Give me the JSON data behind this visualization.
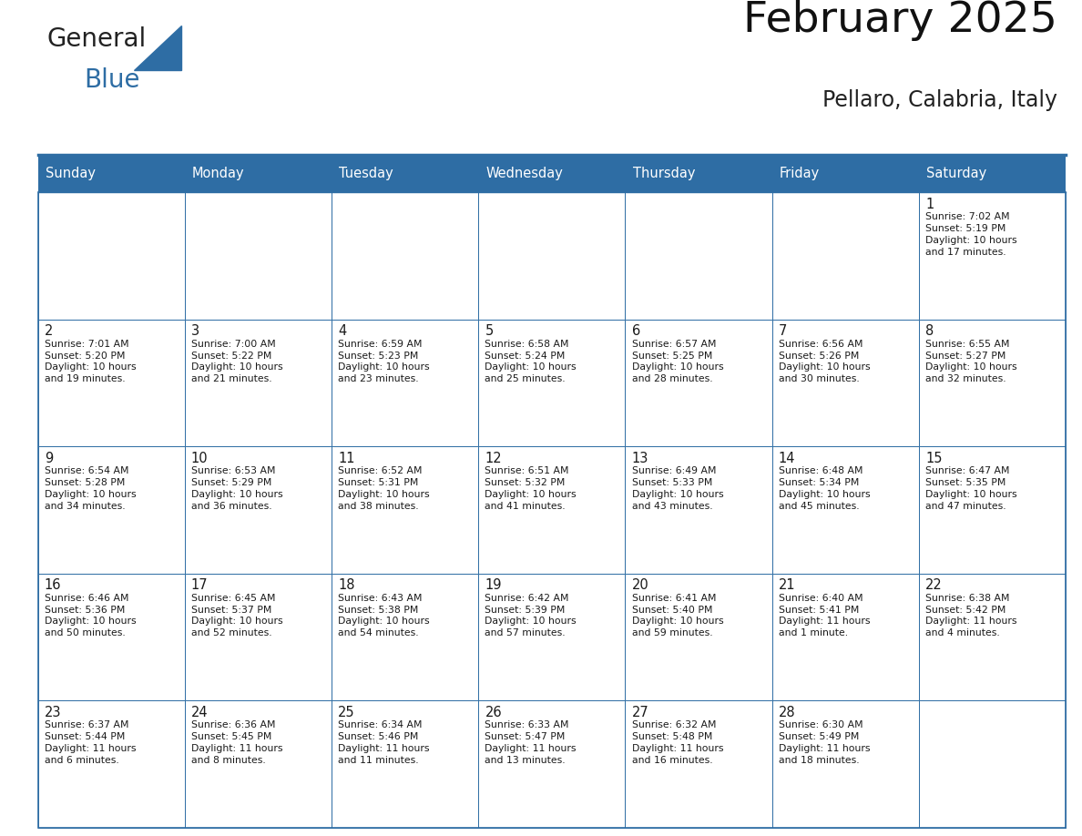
{
  "title": "February 2025",
  "subtitle": "Pellaro, Calabria, Italy",
  "header_bg": "#2E6DA4",
  "header_text": "#FFFFFF",
  "cell_bg": "#FFFFFF",
  "cell_bg_alt": "#F5F5F5",
  "border_color": "#2E6DA4",
  "text_color": "#1a1a1a",
  "logo_color": "#2E6DA4",
  "day_headers": [
    "Sunday",
    "Monday",
    "Tuesday",
    "Wednesday",
    "Thursday",
    "Friday",
    "Saturday"
  ],
  "days": [
    {
      "day": 1,
      "col": 6,
      "row": 0,
      "sunrise": "7:02 AM",
      "sunset": "5:19 PM",
      "daylight": "10 hours\nand 17 minutes."
    },
    {
      "day": 2,
      "col": 0,
      "row": 1,
      "sunrise": "7:01 AM",
      "sunset": "5:20 PM",
      "daylight": "10 hours\nand 19 minutes."
    },
    {
      "day": 3,
      "col": 1,
      "row": 1,
      "sunrise": "7:00 AM",
      "sunset": "5:22 PM",
      "daylight": "10 hours\nand 21 minutes."
    },
    {
      "day": 4,
      "col": 2,
      "row": 1,
      "sunrise": "6:59 AM",
      "sunset": "5:23 PM",
      "daylight": "10 hours\nand 23 minutes."
    },
    {
      "day": 5,
      "col": 3,
      "row": 1,
      "sunrise": "6:58 AM",
      "sunset": "5:24 PM",
      "daylight": "10 hours\nand 25 minutes."
    },
    {
      "day": 6,
      "col": 4,
      "row": 1,
      "sunrise": "6:57 AM",
      "sunset": "5:25 PM",
      "daylight": "10 hours\nand 28 minutes."
    },
    {
      "day": 7,
      "col": 5,
      "row": 1,
      "sunrise": "6:56 AM",
      "sunset": "5:26 PM",
      "daylight": "10 hours\nand 30 minutes."
    },
    {
      "day": 8,
      "col": 6,
      "row": 1,
      "sunrise": "6:55 AM",
      "sunset": "5:27 PM",
      "daylight": "10 hours\nand 32 minutes."
    },
    {
      "day": 9,
      "col": 0,
      "row": 2,
      "sunrise": "6:54 AM",
      "sunset": "5:28 PM",
      "daylight": "10 hours\nand 34 minutes."
    },
    {
      "day": 10,
      "col": 1,
      "row": 2,
      "sunrise": "6:53 AM",
      "sunset": "5:29 PM",
      "daylight": "10 hours\nand 36 minutes."
    },
    {
      "day": 11,
      "col": 2,
      "row": 2,
      "sunrise": "6:52 AM",
      "sunset": "5:31 PM",
      "daylight": "10 hours\nand 38 minutes."
    },
    {
      "day": 12,
      "col": 3,
      "row": 2,
      "sunrise": "6:51 AM",
      "sunset": "5:32 PM",
      "daylight": "10 hours\nand 41 minutes."
    },
    {
      "day": 13,
      "col": 4,
      "row": 2,
      "sunrise": "6:49 AM",
      "sunset": "5:33 PM",
      "daylight": "10 hours\nand 43 minutes."
    },
    {
      "day": 14,
      "col": 5,
      "row": 2,
      "sunrise": "6:48 AM",
      "sunset": "5:34 PM",
      "daylight": "10 hours\nand 45 minutes."
    },
    {
      "day": 15,
      "col": 6,
      "row": 2,
      "sunrise": "6:47 AM",
      "sunset": "5:35 PM",
      "daylight": "10 hours\nand 47 minutes."
    },
    {
      "day": 16,
      "col": 0,
      "row": 3,
      "sunrise": "6:46 AM",
      "sunset": "5:36 PM",
      "daylight": "10 hours\nand 50 minutes."
    },
    {
      "day": 17,
      "col": 1,
      "row": 3,
      "sunrise": "6:45 AM",
      "sunset": "5:37 PM",
      "daylight": "10 hours\nand 52 minutes."
    },
    {
      "day": 18,
      "col": 2,
      "row": 3,
      "sunrise": "6:43 AM",
      "sunset": "5:38 PM",
      "daylight": "10 hours\nand 54 minutes."
    },
    {
      "day": 19,
      "col": 3,
      "row": 3,
      "sunrise": "6:42 AM",
      "sunset": "5:39 PM",
      "daylight": "10 hours\nand 57 minutes."
    },
    {
      "day": 20,
      "col": 4,
      "row": 3,
      "sunrise": "6:41 AM",
      "sunset": "5:40 PM",
      "daylight": "10 hours\nand 59 minutes."
    },
    {
      "day": 21,
      "col": 5,
      "row": 3,
      "sunrise": "6:40 AM",
      "sunset": "5:41 PM",
      "daylight": "11 hours\nand 1 minute."
    },
    {
      "day": 22,
      "col": 6,
      "row": 3,
      "sunrise": "6:38 AM",
      "sunset": "5:42 PM",
      "daylight": "11 hours\nand 4 minutes."
    },
    {
      "day": 23,
      "col": 0,
      "row": 4,
      "sunrise": "6:37 AM",
      "sunset": "5:44 PM",
      "daylight": "11 hours\nand 6 minutes."
    },
    {
      "day": 24,
      "col": 1,
      "row": 4,
      "sunrise": "6:36 AM",
      "sunset": "5:45 PM",
      "daylight": "11 hours\nand 8 minutes."
    },
    {
      "day": 25,
      "col": 2,
      "row": 4,
      "sunrise": "6:34 AM",
      "sunset": "5:46 PM",
      "daylight": "11 hours\nand 11 minutes."
    },
    {
      "day": 26,
      "col": 3,
      "row": 4,
      "sunrise": "6:33 AM",
      "sunset": "5:47 PM",
      "daylight": "11 hours\nand 13 minutes."
    },
    {
      "day": 27,
      "col": 4,
      "row": 4,
      "sunrise": "6:32 AM",
      "sunset": "5:48 PM",
      "daylight": "11 hours\nand 16 minutes."
    },
    {
      "day": 28,
      "col": 5,
      "row": 4,
      "sunrise": "6:30 AM",
      "sunset": "5:49 PM",
      "daylight": "11 hours\nand 18 minutes."
    }
  ]
}
